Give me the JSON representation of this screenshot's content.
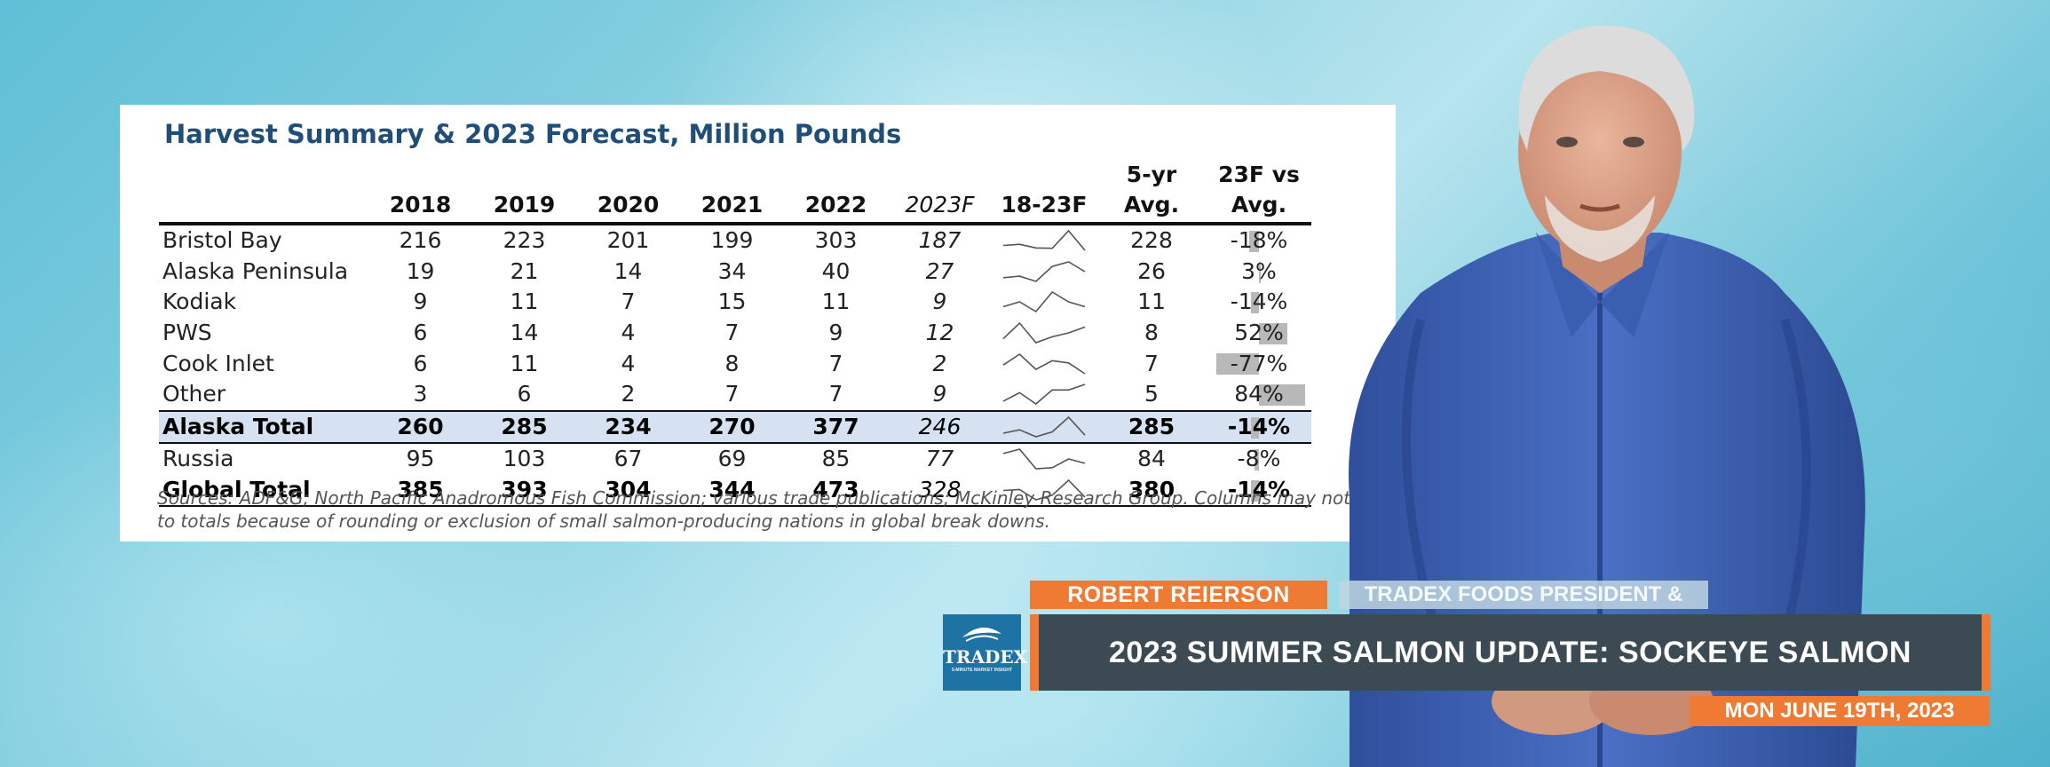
{
  "table": {
    "title": "Harvest Summary & 2023 Forecast, Million Pounds",
    "headers": [
      "",
      "2018",
      "2019",
      "2020",
      "2021",
      "2022",
      "2023F",
      "18-23F",
      "5-yr Avg.",
      "23F vs Avg."
    ],
    "rows": [
      {
        "region": "Bristol Bay",
        "values": [
          "216",
          "223",
          "201",
          "199",
          "303"
        ],
        "forecast": "187",
        "spark": [
          216,
          223,
          201,
          199,
          303,
          187
        ],
        "avg": "228",
        "vs_avg": "-18%",
        "vs_avg_value": -18
      },
      {
        "region": "Alaska Peninsula",
        "values": [
          "19",
          "21",
          "14",
          "34",
          "40"
        ],
        "forecast": "27",
        "spark": [
          19,
          21,
          14,
          34,
          40,
          27
        ],
        "avg": "26",
        "vs_avg": "3%",
        "vs_avg_value": 3
      },
      {
        "region": "Kodiak",
        "values": [
          "9",
          "11",
          "7",
          "15",
          "11"
        ],
        "forecast": "9",
        "spark": [
          9,
          11,
          7,
          15,
          11,
          9
        ],
        "avg": "11",
        "vs_avg": "-14%",
        "vs_avg_value": -14
      },
      {
        "region": "PWS",
        "values": [
          "6",
          "14",
          "4",
          "7",
          "9"
        ],
        "forecast": "12",
        "spark": [
          6,
          14,
          4,
          7,
          9,
          12
        ],
        "avg": "8",
        "vs_avg": "52%",
        "vs_avg_value": 52
      },
      {
        "region": "Cook Inlet",
        "values": [
          "6",
          "11",
          "4",
          "8",
          "7"
        ],
        "forecast": "2",
        "spark": [
          6,
          11,
          4,
          8,
          7,
          2
        ],
        "avg": "7",
        "vs_avg": "-77%",
        "vs_avg_value": -77
      },
      {
        "region": "Other",
        "values": [
          "3",
          "6",
          "2",
          "7",
          "7"
        ],
        "forecast": "9",
        "spark": [
          3,
          6,
          2,
          7,
          7,
          9
        ],
        "avg": "5",
        "vs_avg": "84%",
        "vs_avg_value": 84
      },
      {
        "region": "Alaska Total",
        "values": [
          "260",
          "285",
          "234",
          "270",
          "377"
        ],
        "forecast": "246",
        "spark": [
          260,
          285,
          234,
          270,
          377,
          246
        ],
        "avg": "285",
        "vs_avg": "-14%",
        "vs_avg_value": -14,
        "bold": true,
        "highlight": true
      },
      {
        "region": "Russia",
        "values": [
          "95",
          "103",
          "67",
          "69",
          "85"
        ],
        "forecast": "77",
        "spark": [
          95,
          103,
          67,
          69,
          85,
          77
        ],
        "avg": "84",
        "vs_avg": "-8%",
        "vs_avg_value": -8
      },
      {
        "region": "Global Total",
        "values": [
          "385",
          "393",
          "304",
          "344",
          "473"
        ],
        "forecast": "328",
        "spark": [
          385,
          393,
          304,
          344,
          473,
          328
        ],
        "avg": "380",
        "vs_avg": "-14%",
        "vs_avg_value": -14,
        "bold": true
      }
    ],
    "sources_line1": "Sources: ADF&G; North Pacific Anadromous Fish Commission; various trade publications; McKinley Research Group. Columns may not sum",
    "sources_line2": "to totals because of rounding or exclusion of small salmon-producing nations in global break downs."
  },
  "lower_third": {
    "name": "ROBERT REIERSON",
    "role": "TRADEX FOODS PRESIDENT & CEO",
    "title": "2023 SUMMER SALMON UPDATE: SOCKEYE SALMON",
    "date": "MON JUNE 19TH, 2023",
    "logo_text": "TRADEX",
    "logo_subtext": "5-MINUTE MARKET INSIGHT"
  },
  "colors": {
    "accent_orange": "#ee7a33",
    "title_bar": "#3c4a53",
    "table_title": "#1f4e79",
    "highlight_row": "#d6e2f1",
    "logo_blue": "#1d73a3",
    "shirt_blue": "#3f63b8"
  }
}
